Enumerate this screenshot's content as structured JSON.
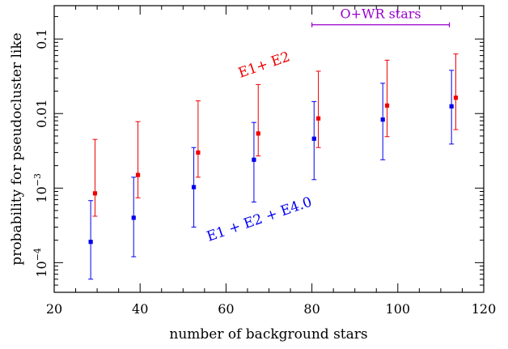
{
  "chart_data": {
    "type": "scatter",
    "xlabel": "number of background stars",
    "ylabel": "probability for pseudocluster like",
    "xlim": [
      20,
      120
    ],
    "ylim": [
      4e-05,
      0.28
    ],
    "yscale": "log",
    "grid": false,
    "xticks": [
      {
        "value": 20,
        "label": "20"
      },
      {
        "value": 40,
        "label": "40"
      },
      {
        "value": 60,
        "label": "60"
      },
      {
        "value": 80,
        "label": "80"
      },
      {
        "value": 100,
        "label": "100"
      },
      {
        "value": 120,
        "label": "120"
      }
    ],
    "yticks_major": [
      {
        "value": 0.0001,
        "base": "10",
        "exp": "−4"
      },
      {
        "value": 0.001,
        "base": "10",
        "exp": "−3"
      },
      {
        "value": 0.01,
        "label": "0.01"
      },
      {
        "value": 0.1,
        "label": "0.1"
      }
    ],
    "series": [
      {
        "label": "E1 + E2 + E4.0",
        "color": "#0000ee",
        "points": [
          {
            "x": 28.5,
            "y": 0.00019,
            "lo": 6e-05,
            "hi": 0.00068
          },
          {
            "x": 38.5,
            "y": 0.0004,
            "lo": 0.00012,
            "hi": 0.0014
          },
          {
            "x": 52.5,
            "y": 0.00103,
            "lo": 0.0003,
            "hi": 0.0035
          },
          {
            "x": 66.5,
            "y": 0.0024,
            "lo": 0.00065,
            "hi": 0.0076
          },
          {
            "x": 80.5,
            "y": 0.0046,
            "lo": 0.0013,
            "hi": 0.0145
          },
          {
            "x": 96.5,
            "y": 0.0083,
            "lo": 0.0024,
            "hi": 0.0255
          },
          {
            "x": 112.5,
            "y": 0.0125,
            "lo": 0.0039,
            "hi": 0.038
          }
        ]
      },
      {
        "label": "E1+ E2",
        "color": "#ee0000",
        "points": [
          {
            "x": 29.5,
            "y": 0.00085,
            "lo": 0.00042,
            "hi": 0.0045
          },
          {
            "x": 39.5,
            "y": 0.0015,
            "lo": 0.00074,
            "hi": 0.0078
          },
          {
            "x": 53.5,
            "y": 0.003,
            "lo": 0.0014,
            "hi": 0.0148
          },
          {
            "x": 67.5,
            "y": 0.0054,
            "lo": 0.0027,
            "hi": 0.0245
          },
          {
            "x": 81.5,
            "y": 0.0086,
            "lo": 0.0035,
            "hi": 0.037
          },
          {
            "x": 97.5,
            "y": 0.0128,
            "lo": 0.0049,
            "hi": 0.052
          },
          {
            "x": 113.5,
            "y": 0.0163,
            "lo": 0.0061,
            "hi": 0.063
          }
        ]
      }
    ],
    "annotations": [
      {
        "text": "E1+ E2",
        "color": "#ee0000"
      },
      {
        "text": "E1 + E2 + E4.0",
        "color": "#0000ee"
      },
      {
        "text": "O+WR stars",
        "color": "#9900cc",
        "x_range": [
          80,
          112
        ],
        "y": 0.155
      }
    ]
  }
}
